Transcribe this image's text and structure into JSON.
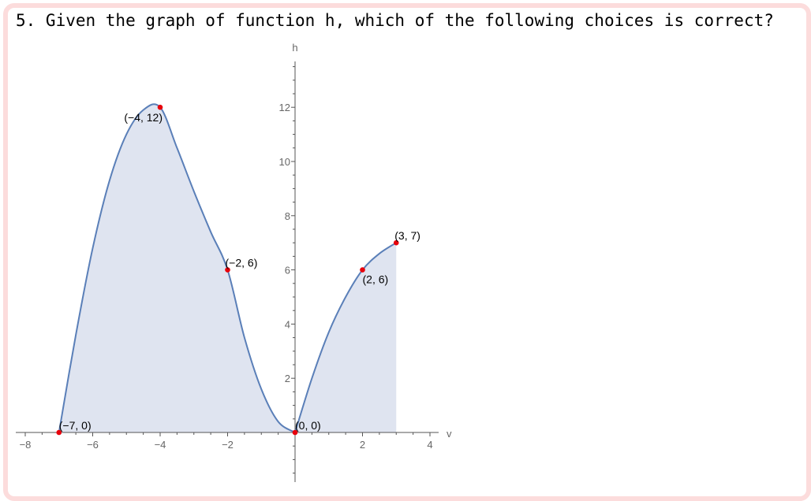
{
  "question": {
    "text": "5. Given the graph of function h, which of the following choices is correct?"
  },
  "chart_data": {
    "type": "area",
    "xlabel": "v",
    "ylabel": "h",
    "xlim": [
      -8,
      4
    ],
    "ylim": [
      -1.8,
      13.8
    ],
    "x_ticks": [
      "−8",
      "−6",
      "−4",
      "−2",
      "2",
      "4"
    ],
    "y_ticks": [
      "2",
      "4",
      "6",
      "8",
      "10",
      "12"
    ],
    "series": [
      {
        "x": [
          -7,
          -6.5,
          -6,
          -5.5,
          -5,
          -4.5,
          -4,
          -3.5,
          -3,
          -2.5,
          -2,
          -1.5,
          -1,
          -0.5,
          0
        ],
        "y": [
          0,
          3.6,
          6.8,
          9.3,
          11.0,
          11.9,
          12,
          10.5,
          8.9,
          7.4,
          6,
          3.5,
          1.6,
          0.4,
          0
        ]
      },
      {
        "x": [
          0,
          0.5,
          1,
          1.5,
          2,
          2.5,
          3
        ],
        "y": [
          0,
          2.0,
          3.7,
          5.0,
          6,
          6.6,
          7
        ]
      }
    ],
    "points": [
      {
        "x": -7,
        "y": 0,
        "label": "(−7, 0)"
      },
      {
        "x": -4,
        "y": 12,
        "label": "(−4, 12)"
      },
      {
        "x": -2,
        "y": 6,
        "label": "(−2, 6)"
      },
      {
        "x": 0,
        "y": 0,
        "label": "(0, 0)"
      },
      {
        "x": 2,
        "y": 6,
        "label": "(2, 6)"
      },
      {
        "x": 3,
        "y": 7,
        "label": "(3, 7)"
      }
    ],
    "colors": {
      "curve": "#5a7fb8",
      "fill": "#dfe4f0",
      "point": "#e8000b",
      "axis": "#555555"
    }
  }
}
